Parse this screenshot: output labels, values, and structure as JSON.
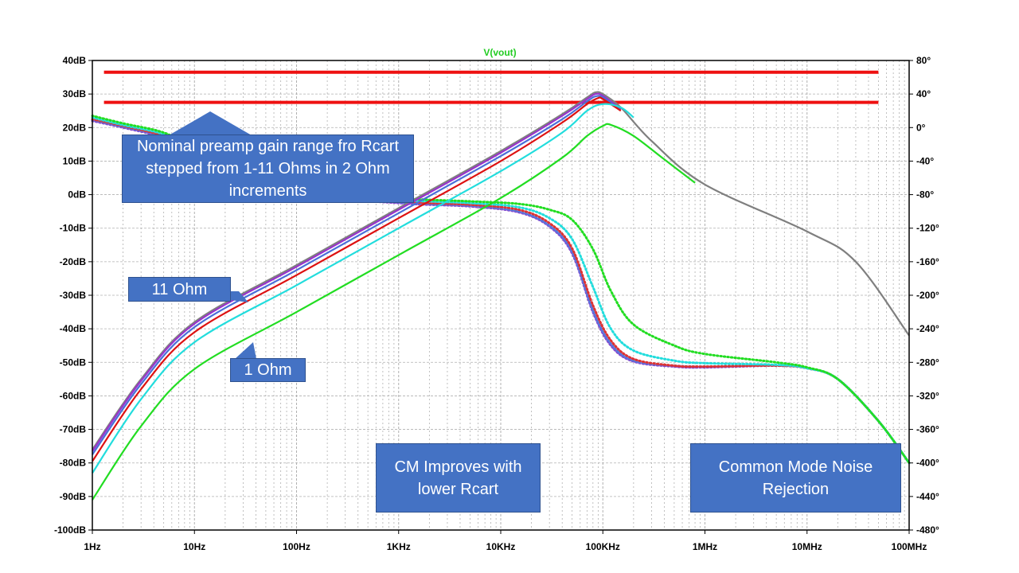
{
  "chart_data": {
    "type": "line",
    "title": "V(vout)",
    "x_scale": "log",
    "xlim": [
      1,
      100000000
    ],
    "x_ticks": [
      "1Hz",
      "10Hz",
      "100Hz",
      "1KHz",
      "10KHz",
      "100KHz",
      "1MHz",
      "10MHz",
      "100MHz"
    ],
    "ylim": [
      -100,
      40
    ],
    "y_ticks": [
      "40dB",
      "30dB",
      "20dB",
      "10dB",
      "0dB",
      "-10dB",
      "-20dB",
      "-30dB",
      "-40dB",
      "-50dB",
      "-60dB",
      "-70dB",
      "-80dB",
      "-90dB",
      "-100dB"
    ],
    "y2lim": [
      -480,
      80
    ],
    "y2_ticks": [
      "80°",
      "40°",
      "0°",
      "-40°",
      "-80°",
      "-120°",
      "-160°",
      "-200°",
      "-240°",
      "-280°",
      "-320°",
      "-360°",
      "-400°",
      "-440°",
      "-480°"
    ],
    "grid": true,
    "colors": {
      "title": "#22cc22",
      "grid": "#b0b0b0",
      "reference": "#ee1111",
      "callout": "#4472c4"
    },
    "reference_lines": [
      {
        "y": 36.5,
        "x_range": [
          1.3,
          50000000
        ],
        "color": "#ee1111"
      },
      {
        "y": 27.5,
        "x_range": [
          1.3,
          50000000
        ],
        "color": "#ee1111"
      }
    ],
    "magnitude_series": [
      {
        "color": "#7f7f7f",
        "x": [
          1,
          3,
          10,
          100,
          1000,
          10000,
          40000,
          70000,
          85000,
          100000,
          150000,
          300000,
          1000000,
          10000000,
          30000000,
          100000000
        ],
        "y": [
          -76,
          -55,
          -38,
          -21,
          -4,
          13,
          24,
          29,
          30.5,
          30,
          26,
          16,
          3,
          -11,
          -20,
          -42
        ]
      },
      {
        "color": "#9933cc",
        "x": [
          1,
          3,
          10,
          100,
          1000,
          10000,
          40000,
          70000,
          85000,
          100000,
          150000
        ],
        "y": [
          -76.5,
          -55.5,
          -38.5,
          -21.5,
          -4.5,
          12.5,
          23.5,
          28.5,
          30,
          29.5,
          25.5
        ]
      },
      {
        "color": "#4a6ed8",
        "x": [
          1,
          3,
          10,
          100,
          1000,
          10000,
          40000,
          70000,
          85000,
          100000,
          150000
        ],
        "y": [
          -77.5,
          -56.5,
          -39.5,
          -22.5,
          -5.5,
          11.5,
          22.5,
          27.8,
          29.3,
          29,
          25.2
        ]
      },
      {
        "color": "#dd1111",
        "x": [
          1,
          3,
          10,
          100,
          1000,
          10000,
          40000,
          70000,
          90000,
          100000,
          150000
        ],
        "y": [
          -79.5,
          -58,
          -41,
          -24,
          -7,
          10,
          21.5,
          27,
          28.8,
          28.5,
          25
        ]
      },
      {
        "color": "#22dddd",
        "x": [
          1,
          3,
          10,
          100,
          1000,
          10000,
          40000,
          70000,
          100000,
          150000,
          200000
        ],
        "y": [
          -83,
          -61,
          -44,
          -27,
          -10,
          7,
          18.5,
          25,
          27,
          26,
          23
        ]
      },
      {
        "color": "#22dd22",
        "x": [
          1,
          3,
          10,
          100,
          1000,
          10000,
          40000,
          70000,
          100000,
          120000,
          200000,
          400000,
          800000
        ],
        "y": [
          -91,
          -69,
          -52,
          -35,
          -18,
          -1,
          11,
          17.5,
          20.5,
          20.8,
          17.5,
          10.5,
          3.5
        ]
      }
    ],
    "phase_series": [
      {
        "color": "#8844cc",
        "x": [
          1,
          2,
          5,
          10,
          100,
          1000,
          5000,
          15000,
          30000,
          50000,
          80000,
          120000,
          200000,
          500000,
          1000000,
          5000000,
          10000000,
          20000000,
          50000000,
          100000000
        ],
        "y": [
          8,
          0,
          -12,
          -30,
          -78,
          -90,
          -94,
          -101,
          -118,
          -150,
          -220,
          -260,
          -279,
          -285,
          -286,
          -284,
          -287,
          -300,
          -350,
          -400
        ]
      },
      {
        "color": "#5577dd",
        "x": [
          1,
          2,
          5,
          10,
          100,
          1000,
          5000,
          15000,
          30000,
          50000,
          80000,
          120000,
          200000,
          500000,
          1000000,
          5000000,
          10000000,
          20000000,
          50000000,
          100000000
        ],
        "y": [
          9,
          1,
          -11,
          -29,
          -77,
          -89,
          -93,
          -100,
          -117,
          -148,
          -218,
          -258,
          -278,
          -284,
          -285,
          -284,
          -287,
          -300,
          -350,
          -400
        ]
      },
      {
        "color": "#dd3333",
        "x": [
          1,
          2,
          5,
          10,
          100,
          1000,
          5000,
          15000,
          30000,
          50000,
          80000,
          120000,
          200000,
          500000,
          1000000,
          5000000,
          10000000,
          20000000,
          50000000,
          100000000
        ],
        "y": [
          10,
          2,
          -10,
          -28,
          -76,
          -88,
          -92,
          -98,
          -114,
          -144,
          -212,
          -254,
          -276,
          -284,
          -285,
          -284,
          -287,
          -300,
          -350,
          -400
        ]
      },
      {
        "color": "#22dddd",
        "x": [
          1,
          2,
          5,
          10,
          100,
          1000,
          5000,
          15000,
          30000,
          50000,
          80000,
          120000,
          200000,
          500000,
          1000000,
          5000000,
          10000000,
          20000000,
          50000000,
          100000000
        ],
        "y": [
          12,
          3,
          -8,
          -26,
          -74,
          -86,
          -90,
          -95,
          -108,
          -133,
          -190,
          -240,
          -266,
          -278,
          -281,
          -283,
          -287,
          -300,
          -350,
          -400
        ]
      },
      {
        "color": "#22dd22",
        "x": [
          1,
          2,
          5,
          10,
          100,
          1000,
          5000,
          15000,
          30000,
          50000,
          80000,
          120000,
          200000,
          500000,
          1000000,
          5000000,
          10000000,
          20000000,
          50000000,
          100000000
        ],
        "y": [
          14,
          5,
          -6,
          -24,
          -72,
          -84,
          -88,
          -91,
          -98,
          -110,
          -145,
          -195,
          -235,
          -260,
          -270,
          -280,
          -286,
          -300,
          -350,
          -400
        ]
      }
    ],
    "annotations": {
      "nominal": "Nominal preamp gain range fro Rcart stepped from 1-11 Ohms in 2 Ohm increments",
      "ohm11": "11 Ohm",
      "ohm1": "1 Ohm",
      "cm": "CM Improves with lower Rcart",
      "cmnr": "Common Mode Noise Rejection"
    }
  }
}
